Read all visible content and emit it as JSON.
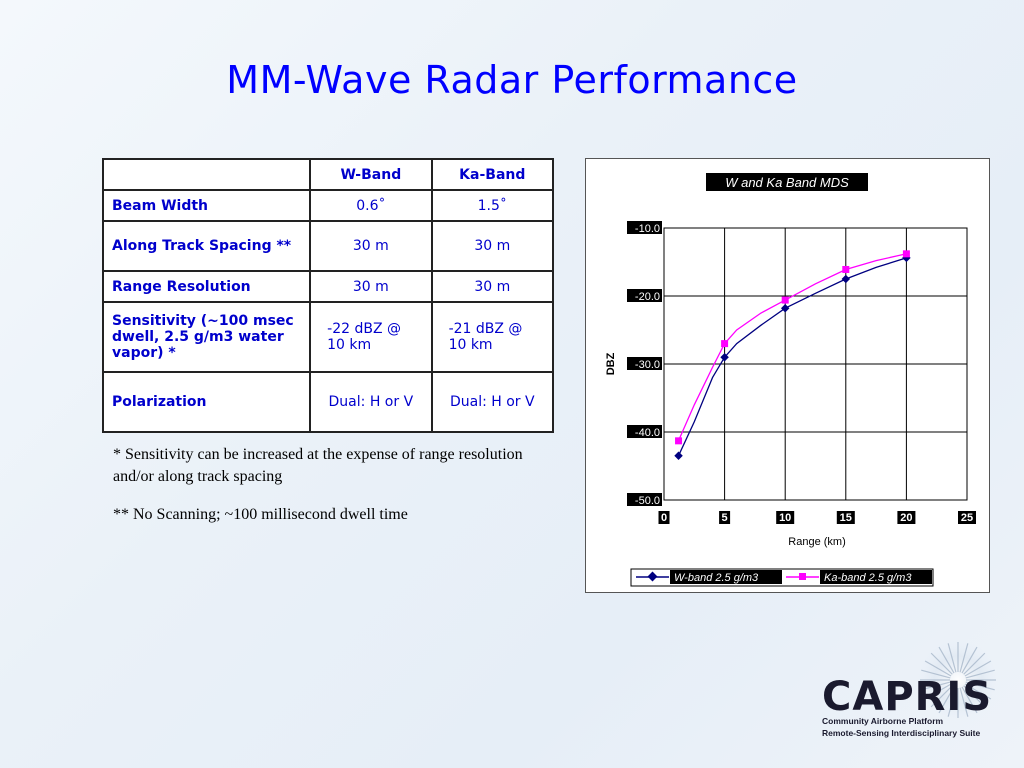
{
  "slide": {
    "title": "MM-Wave Radar Performance"
  },
  "table": {
    "headers": [
      "",
      "W-Band",
      "Ka-Band"
    ],
    "rows": [
      {
        "label": "Beam Width",
        "w": "0.6˚",
        "ka": "1.5˚"
      },
      {
        "label": "Along Track Spacing **",
        "w": "30 m",
        "ka": "30 m"
      },
      {
        "label": "Range Resolution",
        "w": "30 m",
        "ka": "30 m"
      },
      {
        "label": "Sensitivity (~100 msec dwell, 2.5 g/m3 water vapor) *",
        "w": "-22 dBZ @ 10 km",
        "ka": "-21 dBZ @ 10 km"
      },
      {
        "label": "Polarization",
        "w": "Dual: H or V",
        "ka": "Dual: H or V"
      }
    ]
  },
  "notes": {
    "note1": "* Sensitivity can be increased at the expense of range resolution and/or along track spacing",
    "note2": "** No Scanning; ~100 millisecond dwell time"
  },
  "chart_data": {
    "type": "line",
    "title": "W and Ka Band MDS",
    "xlabel": "Range (km)",
    "ylabel": "DBZ",
    "xlim": [
      0,
      25
    ],
    "ylim": [
      -50,
      -10
    ],
    "x_ticks": [
      "0",
      "5",
      "10",
      "15",
      "20",
      "25"
    ],
    "y_ticks": [
      "-10.0",
      "-20.0",
      "-30.0",
      "-40.0",
      "-50.0"
    ],
    "grid": true,
    "legend_position": "bottom",
    "series": [
      {
        "name": "W-band 2.5 g/m3",
        "color": "#000080",
        "marker": "diamond",
        "x": [
          1.2,
          2.5,
          4,
          5,
          6,
          8,
          10,
          12.5,
          15,
          17.5,
          20
        ],
        "y": [
          -43.5,
          -38.5,
          -32.0,
          -29.0,
          -27.0,
          -24.3,
          -21.8,
          -19.6,
          -17.5,
          -15.8,
          -14.4
        ]
      },
      {
        "name": "Ka-band 2.5 g/m3",
        "color": "#ff00ff",
        "marker": "square",
        "x": [
          1.2,
          2.5,
          4,
          5,
          6,
          8,
          10,
          12.5,
          15,
          17.5,
          20
        ],
        "y": [
          -41.3,
          -36.0,
          -30.5,
          -27.0,
          -25.0,
          -22.5,
          -20.6,
          -18.2,
          -16.1,
          -14.8,
          -13.8
        ]
      }
    ]
  },
  "logo": {
    "name": "CAPRIS",
    "line1": "Community Airborne Platform",
    "line2": "Remote-Sensing Interdisciplinary Suite"
  }
}
